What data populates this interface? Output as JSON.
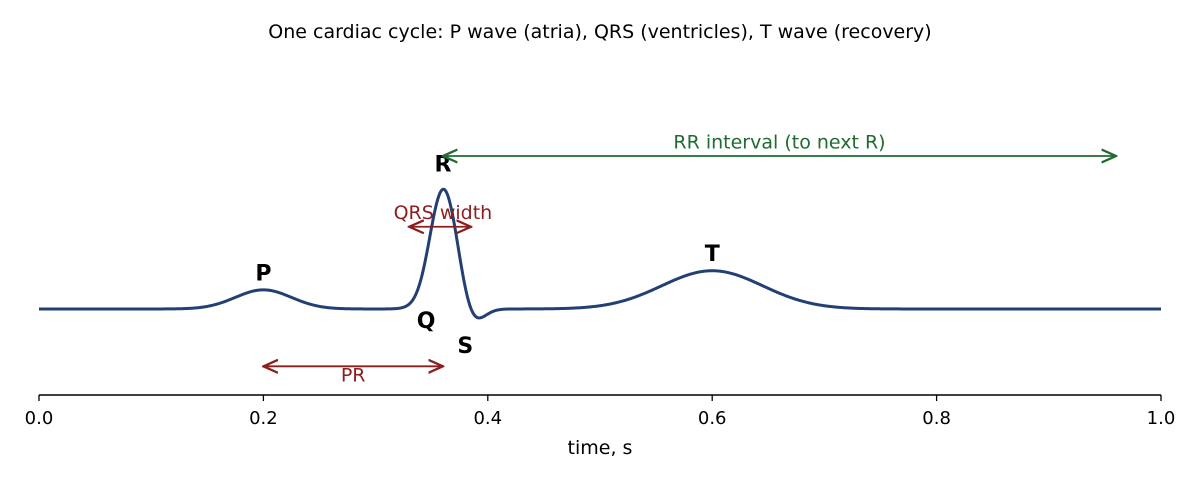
{
  "chart_data": {
    "type": "line",
    "title": "One cardiac cycle: P wave (atria), QRS (ventricles), T wave (recovery)",
    "xlabel": "time, s",
    "ylabel": "",
    "xlim": [
      0.0,
      1.0
    ],
    "ylim": [
      -0.45,
      1.25
    ],
    "x_ticks": [
      "0.0",
      "0.2",
      "0.4",
      "0.6",
      "0.8",
      "1.0"
    ],
    "grid": false,
    "line_color": "#233f73",
    "waves": [
      {
        "center": 0.2,
        "amplitude": 0.1,
        "width": 0.025
      },
      {
        "center": 0.345,
        "amplitude": -0.06,
        "width": 0.01
      },
      {
        "center": 0.36,
        "amplitude": 0.65,
        "width": 0.013
      },
      {
        "center": 0.385,
        "amplitude": -0.1,
        "width": 0.01
      },
      {
        "center": 0.6,
        "amplitude": 0.2,
        "width": 0.045
      }
    ],
    "wave_labels": [
      {
        "text": "P",
        "x": 0.2,
        "y": 0.15
      },
      {
        "text": "R",
        "x": 0.36,
        "y": 0.72
      },
      {
        "text": "Q",
        "x": 0.345,
        "y": -0.1
      },
      {
        "text": "S",
        "x": 0.38,
        "y": -0.23
      },
      {
        "text": "T",
        "x": 0.6,
        "y": 0.25
      }
    ],
    "intervals": [
      {
        "label": "RR interval (to next R)",
        "start": 0.36,
        "end": 0.96,
        "y": 0.8,
        "label_x": 0.66,
        "label_y": 0.84,
        "color": "#1f6b30"
      },
      {
        "label": "QRS width",
        "start": 0.33,
        "end": 0.385,
        "y": 0.43,
        "label_x": 0.36,
        "label_y": 0.47,
        "color": "#8b1e1e"
      },
      {
        "label": "PR",
        "start": 0.2,
        "end": 0.36,
        "y": -0.3,
        "label_x": 0.28,
        "label_y": -0.38,
        "color": "#8b1e1e"
      }
    ]
  }
}
